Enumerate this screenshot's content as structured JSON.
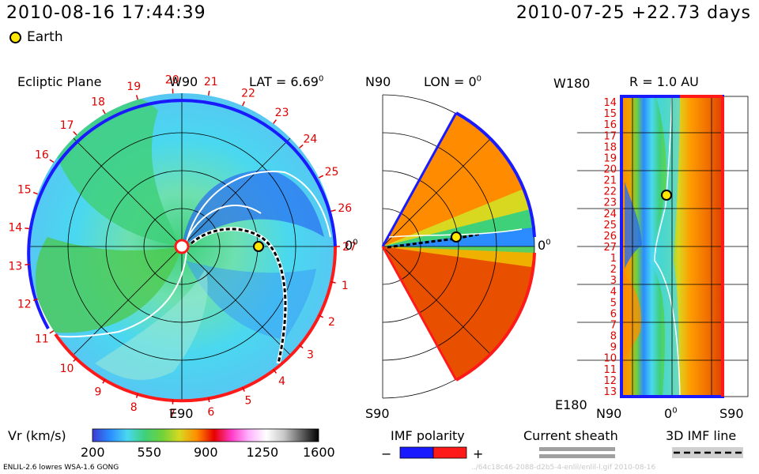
{
  "header": {
    "datetime": "2010-08-16 17:44:39",
    "reference": "2010-07-25 +22.73 days",
    "earth_label": "Earth"
  },
  "ecliptic": {
    "title": "Ecliptic Plane",
    "north_label": "W90",
    "south_label": "E90",
    "zero_label": "0",
    "zero_sup": "0",
    "lat_label": "LAT = 6.69",
    "lat_sup": "0",
    "rotation_numbers": [
      "27",
      "1",
      "2",
      "3",
      "4",
      "5",
      "6",
      "7",
      "8",
      "9",
      "10",
      "11",
      "12",
      "13",
      "14",
      "15",
      "16",
      "17",
      "18",
      "19",
      "20",
      "21",
      "22",
      "23",
      "24",
      "25",
      "26"
    ]
  },
  "meridional": {
    "top_label": "N90",
    "bottom_label": "S90",
    "lon_label": "LON = 0",
    "lon_sup": "0",
    "zero_label": "0",
    "zero_sup": "0"
  },
  "radial": {
    "title": "R = 1.0 AU",
    "top_left_label": "W180",
    "bottom_left_label": "E180",
    "bottom_left": "N90",
    "bottom_mid": "0",
    "bottom_mid_sup": "0",
    "bottom_right": "S90",
    "day_labels": [
      "14",
      "15",
      "16",
      "17",
      "18",
      "19",
      "20",
      "21",
      "22",
      "23",
      "24",
      "25",
      "26",
      "27",
      "1",
      "2",
      "3",
      "4",
      "5",
      "6",
      "7",
      "8",
      "9",
      "10",
      "11",
      "12",
      "13"
    ]
  },
  "colorbar": {
    "label": "Vr (km/s)",
    "ticks": [
      "200",
      "550",
      "900",
      "1250",
      "1600"
    ],
    "stops": [
      "#3c3cd2",
      "#2a8cff",
      "#4ad8f0",
      "#3fd07a",
      "#6fd23a",
      "#d8d820",
      "#ff8c00",
      "#e60000",
      "#ff3cc8",
      "#ffb4ff",
      "#ffffff",
      "#c8c8c8",
      "#646464",
      "#000000"
    ]
  },
  "legend": {
    "imf_title": "IMF polarity",
    "imf_minus": "−",
    "imf_plus": "+",
    "sheath_title": "Current sheath",
    "imf3d_title": "3D IMF line"
  },
  "footer": {
    "model": "ENLIL-2.6 lowres WSA-1.6 GONG",
    "watermark": "../64c18c46-2088-d2b5-4-enlil/enlil-l.gif 2010-08-16"
  },
  "colors": {
    "label_red": "#e00000",
    "polarity_blue": "#1a1aff",
    "polarity_red": "#ff1a1a",
    "earth_yellow": "#ffe800"
  },
  "chart_data": [
    {
      "type": "heatmap",
      "title": "Ecliptic Plane",
      "variable": "Vr (km/s)",
      "color_range": [
        200,
        1600
      ],
      "earth_marker": "Earth"
    },
    {
      "type": "heatmap",
      "title": "LON = 0",
      "variable": "Vr (km/s)",
      "color_range": [
        200,
        1600
      ],
      "lat_range": [
        "N90",
        "S90"
      ]
    },
    {
      "type": "heatmap",
      "title": "R = 1.0 AU",
      "variable": "Vr (km/s)",
      "color_range": [
        200,
        1600
      ],
      "x_range": [
        "N90",
        "S90"
      ],
      "y_range": [
        "W180",
        "E180"
      ]
    }
  ]
}
